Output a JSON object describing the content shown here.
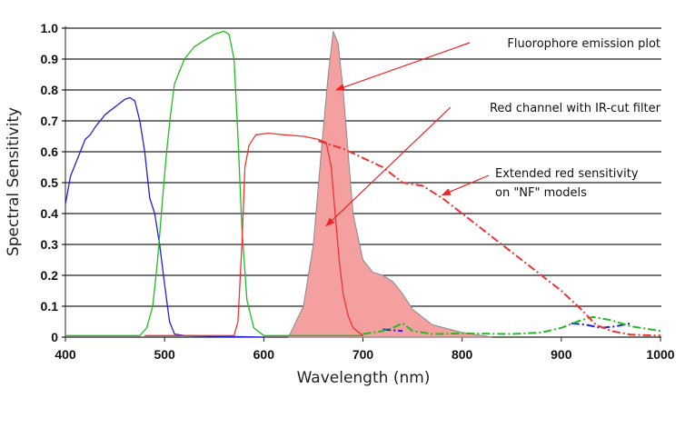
{
  "chart_data": {
    "type": "line",
    "title": "",
    "xlabel": "Wavelength (nm)",
    "ylabel": "Spectral Sensitivity",
    "xlim": [
      400,
      1000
    ],
    "ylim": [
      0,
      1.0
    ],
    "xticks": [
      "400",
      "500",
      "600",
      "700",
      "800",
      "900",
      "1000"
    ],
    "yticks": [
      "0",
      "0.1",
      "0.2",
      "0.3",
      "0.4",
      "0.5",
      "0.6",
      "0.7",
      "0.8",
      "0.9",
      "1.0"
    ],
    "grid": "horizontal",
    "series": [
      {
        "color": "#f4a0a0",
        "style": "filled-area",
        "edge": "#8a8a8a",
        "points": [
          [
            625,
            0
          ],
          [
            640,
            0.1
          ],
          [
            650,
            0.3
          ],
          [
            658,
            0.6
          ],
          [
            665,
            0.85
          ],
          [
            670,
            0.99
          ],
          [
            675,
            0.95
          ],
          [
            680,
            0.8
          ],
          [
            685,
            0.6
          ],
          [
            690,
            0.4
          ],
          [
            700,
            0.25
          ],
          [
            710,
            0.21
          ],
          [
            720,
            0.2
          ],
          [
            730,
            0.18
          ],
          [
            740,
            0.14
          ],
          [
            750,
            0.09
          ],
          [
            770,
            0.04
          ],
          [
            800,
            0.015
          ],
          [
            820,
            0.005
          ],
          [
            830,
            0
          ]
        ]
      },
      {
        "color": "#2222dd",
        "style": "solid",
        "points": [
          [
            400,
            0.43
          ],
          [
            405,
            0.52
          ],
          [
            410,
            0.56
          ],
          [
            415,
            0.6
          ],
          [
            420,
            0.64
          ],
          [
            425,
            0.655
          ],
          [
            430,
            0.68
          ],
          [
            440,
            0.72
          ],
          [
            450,
            0.745
          ],
          [
            460,
            0.77
          ],
          [
            465,
            0.775
          ],
          [
            470,
            0.765
          ],
          [
            475,
            0.7
          ],
          [
            480,
            0.6
          ],
          [
            485,
            0.45
          ],
          [
            490,
            0.4
          ],
          [
            495,
            0.3
          ],
          [
            500,
            0.17
          ],
          [
            505,
            0.05
          ],
          [
            510,
            0.01
          ],
          [
            520,
            0.005
          ],
          [
            600,
            0
          ]
        ]
      },
      {
        "color": "#2222dd",
        "style": "dashdot",
        "points": [
          [
            720,
            0.025
          ],
          [
            740,
            0.02
          ]
        ]
      },
      {
        "color": "#2222dd",
        "style": "dashdot",
        "points": [
          [
            910,
            0.045
          ],
          [
            925,
            0.04
          ],
          [
            940,
            0.03
          ],
          [
            955,
            0.035
          ],
          [
            970,
            0.045
          ]
        ]
      },
      {
        "color": "#22bb22",
        "style": "solid",
        "points": [
          [
            400,
            0.005
          ],
          [
            475,
            0.005
          ],
          [
            482,
            0.03
          ],
          [
            488,
            0.1
          ],
          [
            493,
            0.25
          ],
          [
            498,
            0.45
          ],
          [
            502,
            0.6
          ],
          [
            506,
            0.72
          ],
          [
            510,
            0.82
          ],
          [
            520,
            0.9
          ],
          [
            530,
            0.94
          ],
          [
            540,
            0.96
          ],
          [
            550,
            0.98
          ],
          [
            560,
            0.99
          ],
          [
            565,
            0.98
          ],
          [
            570,
            0.9
          ],
          [
            574,
            0.65
          ],
          [
            578,
            0.35
          ],
          [
            583,
            0.12
          ],
          [
            590,
            0.03
          ],
          [
            600,
            0.005
          ],
          [
            700,
            0.005
          ]
        ]
      },
      {
        "color": "#22bb22",
        "style": "dashdot",
        "points": [
          [
            700,
            0.01
          ],
          [
            720,
            0.02
          ],
          [
            730,
            0.03
          ],
          [
            740,
            0.045
          ],
          [
            750,
            0.02
          ],
          [
            770,
            0.01
          ],
          [
            800,
            0.012
          ],
          [
            850,
            0.01
          ],
          [
            880,
            0.015
          ],
          [
            900,
            0.03
          ],
          [
            920,
            0.055
          ],
          [
            932,
            0.065
          ],
          [
            950,
            0.055
          ],
          [
            970,
            0.035
          ],
          [
            1000,
            0.02
          ]
        ]
      },
      {
        "color": "#ee3333",
        "style": "solid",
        "points": [
          [
            480,
            0.005
          ],
          [
            570,
            0.005
          ],
          [
            574,
            0.05
          ],
          [
            578,
            0.3
          ],
          [
            581,
            0.55
          ],
          [
            585,
            0.62
          ],
          [
            592,
            0.655
          ],
          [
            605,
            0.66
          ],
          [
            620,
            0.655
          ],
          [
            640,
            0.65
          ],
          [
            655,
            0.64
          ],
          [
            663,
            0.63
          ],
          [
            668,
            0.55
          ],
          [
            672,
            0.4
          ],
          [
            676,
            0.25
          ],
          [
            680,
            0.14
          ],
          [
            685,
            0.07
          ],
          [
            690,
            0.03
          ],
          [
            700,
            0.005
          ]
        ]
      },
      {
        "color": "#ee3333",
        "style": "dashdot",
        "points": [
          [
            655,
            0.635
          ],
          [
            680,
            0.61
          ],
          [
            700,
            0.58
          ],
          [
            720,
            0.55
          ],
          [
            740,
            0.5
          ],
          [
            760,
            0.49
          ],
          [
            780,
            0.45
          ],
          [
            800,
            0.4
          ],
          [
            820,
            0.35
          ],
          [
            840,
            0.3
          ],
          [
            860,
            0.25
          ],
          [
            880,
            0.2
          ],
          [
            900,
            0.15
          ],
          [
            920,
            0.09
          ],
          [
            935,
            0.04
          ],
          [
            950,
            0.02
          ],
          [
            970,
            0.008
          ],
          [
            1000,
            0.005
          ]
        ]
      }
    ],
    "annotations": [
      {
        "text": "Fluorophore emission plot",
        "target": [
          673,
          0.8
        ]
      },
      {
        "text": "Red channel with IR-cut filter",
        "target": [
          663,
          0.36
        ]
      },
      {
        "text": "Extended red sensitivity",
        "text2": "on \"NF\" models",
        "target": [
          780,
          0.46
        ]
      }
    ],
    "arrow_color": "#ee2222"
  }
}
